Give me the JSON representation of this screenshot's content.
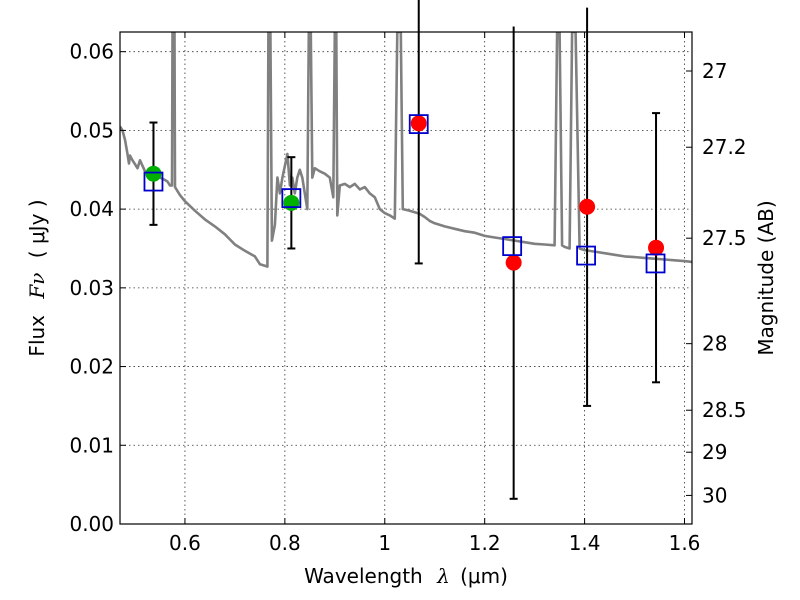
{
  "chart_data": {
    "type": "scatter",
    "title": "",
    "xlabel_main": "Wavelength",
    "xlabel_symbol": "λ",
    "xlabel_unit": "(μm)",
    "ylabel_main": "Flux",
    "ylabel_symbol": "Fν",
    "ylabel_unit": "( μJy )",
    "y2label": "Magnitude (AB)",
    "xlim": [
      0.47,
      1.615
    ],
    "ylim": [
      0.0,
      0.0625
    ],
    "grid": true,
    "x_ticks": [
      "0.6",
      "0.8",
      "1",
      "1.2",
      "1.4",
      "1.6"
    ],
    "x_tick_values": [
      0.6,
      0.8,
      1.0,
      1.2,
      1.4,
      1.6
    ],
    "y_ticks": [
      "0.00",
      "0.01",
      "0.02",
      "0.03",
      "0.04",
      "0.05",
      "0.06"
    ],
    "y_tick_values": [
      0.0,
      0.01,
      0.02,
      0.03,
      0.04,
      0.05,
      0.06
    ],
    "y2_ticks": [
      "27",
      "27.2",
      "27.5",
      "28",
      "28.5",
      "29",
      "30"
    ],
    "y2_tick_values": [
      27.0,
      27.2,
      27.5,
      28.0,
      28.5,
      29.0,
      30.0
    ],
    "colors": {
      "model": "#808080",
      "detected": "#00b000",
      "undetected": "#ff0000",
      "model_flux": "#0000cc",
      "errorbar": "#000000"
    },
    "observed_points": [
      {
        "x": 0.537,
        "y": 0.0445,
        "err": 0.0065,
        "group": "detected"
      },
      {
        "x": 0.813,
        "y": 0.0408,
        "err": 0.0058,
        "group": "detected"
      },
      {
        "x": 1.068,
        "y": 0.0509,
        "err": 0.0178,
        "group": "undetected"
      },
      {
        "x": 1.258,
        "y": 0.0332,
        "err": 0.03,
        "group": "undetected"
      },
      {
        "x": 1.405,
        "y": 0.0403,
        "err": 0.0253,
        "group": "undetected"
      },
      {
        "x": 1.543,
        "y": 0.0351,
        "err": 0.0171,
        "group": "undetected"
      }
    ],
    "model_flux_points": [
      {
        "x": 0.537,
        "y": 0.0435
      },
      {
        "x": 0.813,
        "y": 0.0414
      },
      {
        "x": 1.068,
        "y": 0.0508
      },
      {
        "x": 1.255,
        "y": 0.0353
      },
      {
        "x": 1.403,
        "y": 0.0341
      },
      {
        "x": 1.542,
        "y": 0.0331
      }
    ],
    "model_spectrum": [
      [
        0.47,
        0.0505
      ],
      [
        0.475,
        0.05
      ],
      [
        0.48,
        0.0488
      ],
      [
        0.485,
        0.047
      ],
      [
        0.488,
        0.0458
      ],
      [
        0.49,
        0.0468
      ],
      [
        0.495,
        0.0462
      ],
      [
        0.5,
        0.0457
      ],
      [
        0.505,
        0.0452
      ],
      [
        0.51,
        0.0462
      ],
      [
        0.515,
        0.0455
      ],
      [
        0.52,
        0.0448
      ],
      [
        0.53,
        0.0445
      ],
      [
        0.54,
        0.0442
      ],
      [
        0.55,
        0.044
      ],
      [
        0.56,
        0.0437
      ],
      [
        0.565,
        0.0435
      ],
      [
        0.57,
        0.043
      ],
      [
        0.574,
        0.043
      ],
      [
        0.575,
        0.0625
      ],
      [
        0.579,
        0.0625
      ],
      [
        0.58,
        0.0428
      ],
      [
        0.59,
        0.0418
      ],
      [
        0.6,
        0.041
      ],
      [
        0.62,
        0.0398
      ],
      [
        0.64,
        0.0387
      ],
      [
        0.66,
        0.0378
      ],
      [
        0.68,
        0.0368
      ],
      [
        0.7,
        0.0355
      ],
      [
        0.72,
        0.0347
      ],
      [
        0.74,
        0.034
      ],
      [
        0.75,
        0.033
      ],
      [
        0.76,
        0.0328
      ],
      [
        0.765,
        0.0327
      ],
      [
        0.767,
        0.0625
      ],
      [
        0.771,
        0.0625
      ],
      [
        0.774,
        0.036
      ],
      [
        0.78,
        0.038
      ],
      [
        0.785,
        0.044
      ],
      [
        0.79,
        0.042
      ],
      [
        0.795,
        0.044
      ],
      [
        0.8,
        0.0455
      ],
      [
        0.805,
        0.047
      ],
      [
        0.81,
        0.043
      ],
      [
        0.815,
        0.044
      ],
      [
        0.82,
        0.042
      ],
      [
        0.825,
        0.044
      ],
      [
        0.83,
        0.045
      ],
      [
        0.835,
        0.044
      ],
      [
        0.84,
        0.042
      ],
      [
        0.845,
        0.04
      ],
      [
        0.848,
        0.0625
      ],
      [
        0.852,
        0.0625
      ],
      [
        0.855,
        0.044
      ],
      [
        0.86,
        0.0452
      ],
      [
        0.87,
        0.0448
      ],
      [
        0.88,
        0.0445
      ],
      [
        0.89,
        0.044
      ],
      [
        0.897,
        0.0415
      ],
      [
        0.9,
        0.0625
      ],
      [
        0.903,
        0.0625
      ],
      [
        0.905,
        0.0392
      ],
      [
        0.91,
        0.043
      ],
      [
        0.92,
        0.0432
      ],
      [
        0.93,
        0.0428
      ],
      [
        0.94,
        0.0432
      ],
      [
        0.95,
        0.0425
      ],
      [
        0.96,
        0.0428
      ],
      [
        0.97,
        0.042
      ],
      [
        0.98,
        0.0415
      ],
      [
        0.99,
        0.04
      ],
      [
        1.0,
        0.0395
      ],
      [
        1.01,
        0.0392
      ],
      [
        1.02,
        0.0388
      ],
      [
        1.025,
        0.0625
      ],
      [
        1.032,
        0.0625
      ],
      [
        1.036,
        0.04
      ],
      [
        1.05,
        0.0398
      ],
      [
        1.06,
        0.0396
      ],
      [
        1.07,
        0.0394
      ],
      [
        1.08,
        0.039
      ],
      [
        1.09,
        0.0385
      ],
      [
        1.1,
        0.0382
      ],
      [
        1.12,
        0.0378
      ],
      [
        1.14,
        0.0375
      ],
      [
        1.16,
        0.0372
      ],
      [
        1.18,
        0.037
      ],
      [
        1.2,
        0.0366
      ],
      [
        1.22,
        0.0364
      ],
      [
        1.24,
        0.0362
      ],
      [
        1.26,
        0.036
      ],
      [
        1.28,
        0.0358
      ],
      [
        1.3,
        0.0356
      ],
      [
        1.32,
        0.0355
      ],
      [
        1.34,
        0.0354
      ],
      [
        1.345,
        0.0625
      ],
      [
        1.35,
        0.0625
      ],
      [
        1.355,
        0.0354
      ],
      [
        1.36,
        0.0352
      ],
      [
        1.37,
        0.035
      ],
      [
        1.375,
        0.0625
      ],
      [
        1.382,
        0.0625
      ],
      [
        1.39,
        0.035
      ],
      [
        1.4,
        0.0348
      ],
      [
        1.42,
        0.0346
      ],
      [
        1.44,
        0.0344
      ],
      [
        1.46,
        0.0342
      ],
      [
        1.48,
        0.034
      ],
      [
        1.5,
        0.0339
      ],
      [
        1.52,
        0.0338
      ],
      [
        1.54,
        0.0337
      ],
      [
        1.56,
        0.0336
      ],
      [
        1.58,
        0.0335
      ],
      [
        1.6,
        0.0334
      ],
      [
        1.615,
        0.0333
      ]
    ]
  }
}
